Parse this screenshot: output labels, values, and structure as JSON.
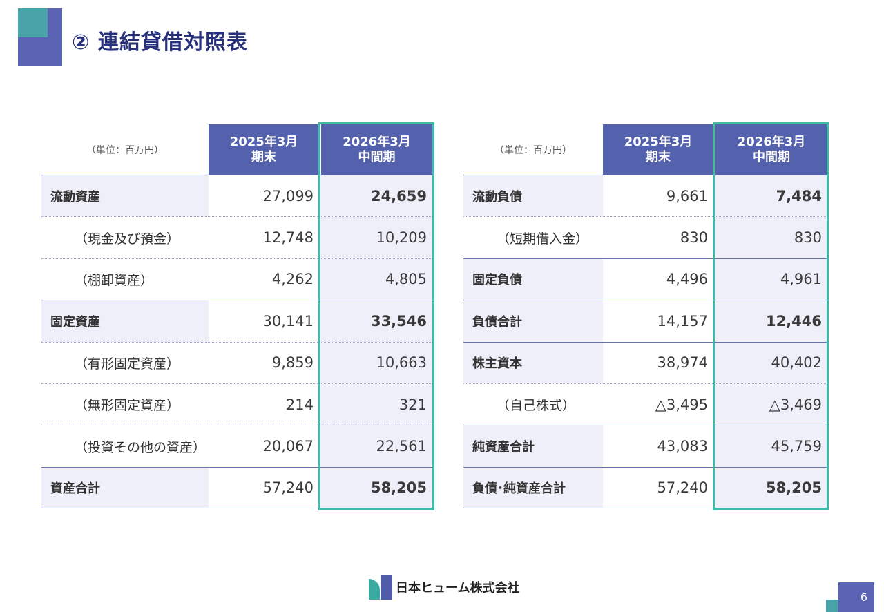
{
  "page": {
    "title": "② 連結貸借対照表",
    "page_number": "6",
    "company_logo_text": "日本ヒューム株式会社"
  },
  "assets_table": {
    "unit_label": "（単位：百万円）",
    "col_prev": [
      "2025年3月",
      "期末"
    ],
    "col_curr": [
      "2026年3月",
      "中間期"
    ],
    "rows": [
      {
        "label": "流動資産",
        "prev": "27,099",
        "curr": "24,659",
        "type": "main",
        "curr_bold": true
      },
      {
        "label": "（現金及び預金）",
        "prev": "12,748",
        "curr": "10,209",
        "type": "sub",
        "curr_bold": false
      },
      {
        "label": "（棚卸資産）",
        "prev": "4,262",
        "curr": "4,805",
        "type": "sub",
        "curr_bold": false
      },
      {
        "label": "固定資産",
        "prev": "30,141",
        "curr": "33,546",
        "type": "main",
        "curr_bold": true
      },
      {
        "label": "（有形固定資産）",
        "prev": "9,859",
        "curr": "10,663",
        "type": "sub",
        "curr_bold": false
      },
      {
        "label": "（無形固定資産）",
        "prev": "214",
        "curr": "321",
        "type": "sub",
        "curr_bold": false
      },
      {
        "label": "（投資その他の資産）",
        "prev": "20,067",
        "curr": "22,561",
        "type": "sub",
        "curr_bold": false
      },
      {
        "label": "資産合計",
        "prev": "57,240",
        "curr": "58,205",
        "type": "main",
        "curr_bold": true
      }
    ]
  },
  "liabilities_table": {
    "unit_label": "（単位：百万円）",
    "col_prev": [
      "2025年3月",
      "期末"
    ],
    "col_curr": [
      "2026年3月",
      "中間期"
    ],
    "rows": [
      {
        "label": "流動負債",
        "prev": "9,661",
        "curr": "7,484",
        "type": "main",
        "curr_bold": true
      },
      {
        "label": "（短期借入金）",
        "prev": "830",
        "curr": "830",
        "type": "sub",
        "curr_bold": false
      },
      {
        "label": "固定負債",
        "prev": "4,496",
        "curr": "4,961",
        "type": "main",
        "curr_bold": false
      },
      {
        "label": "負債合計",
        "prev": "14,157",
        "curr": "12,446",
        "type": "main",
        "curr_bold": true
      },
      {
        "label": "株主資本",
        "prev": "38,974",
        "curr": "40,402",
        "type": "main",
        "curr_bold": false
      },
      {
        "label": "（自己株式）",
        "prev": "△3,495",
        "curr": "△3,469",
        "type": "sub",
        "curr_bold": false
      },
      {
        "label": "純資産合計",
        "prev": "43,083",
        "curr": "45,759",
        "type": "main",
        "curr_bold": false
      },
      {
        "label": "負債･純資産合計",
        "prev": "57,240",
        "curr": "58,205",
        "type": "main",
        "curr_bold": true
      }
    ]
  },
  "colors": {
    "header_bg": "#5462ad",
    "title": "#27307a",
    "highlight_border": "#3dbba8",
    "row_tint": "#efeffa"
  }
}
